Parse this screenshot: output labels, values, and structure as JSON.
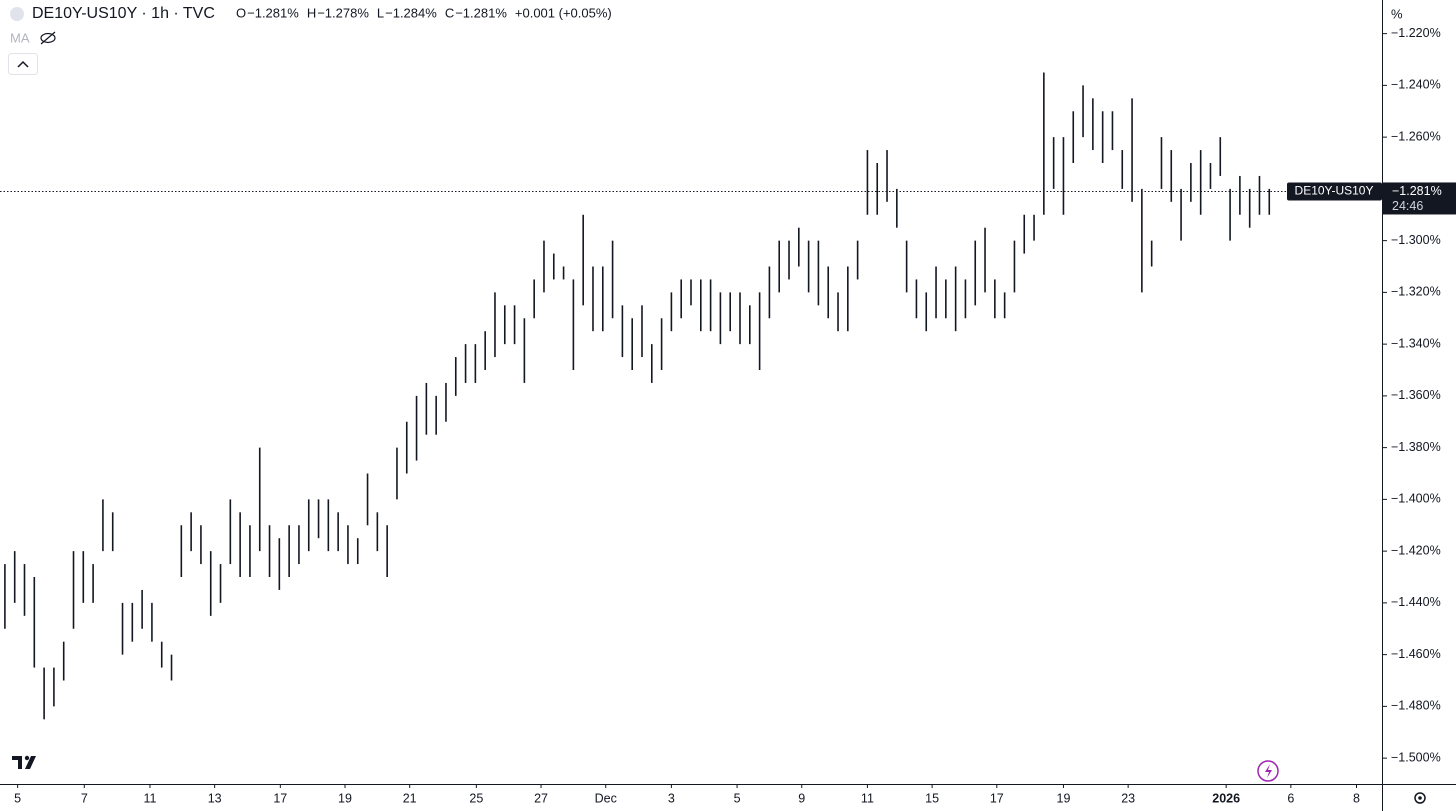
{
  "chart_data": {
    "type": "range-bar",
    "title": "DE10Y-US10Y · 1h · TVC",
    "ohlc": [
      {
        "label": "O",
        "value": "−1.281%"
      },
      {
        "label": "H",
        "value": "−1.278%"
      },
      {
        "label": "L",
        "value": "−1.284%"
      },
      {
        "label": "C",
        "value": "−1.281%"
      }
    ],
    "change": "+0.001 (+0.05%)",
    "indicator": "MA",
    "unit": "%",
    "color": "#131722",
    "last": {
      "name": "DE10Y-US10Y",
      "value": -1.281,
      "label": "−1.281%",
      "countdown": "24:46"
    },
    "xlim": [
      -0.5,
      140.5
    ],
    "xticks": [
      {
        "value": 1.3,
        "label": "5"
      },
      {
        "value": 8.1,
        "label": "7"
      },
      {
        "value": 14.8,
        "label": "11"
      },
      {
        "value": 21.4,
        "label": "13"
      },
      {
        "value": 28.1,
        "label": "17"
      },
      {
        "value": 34.7,
        "label": "19"
      },
      {
        "value": 41.3,
        "label": "21"
      },
      {
        "value": 48.1,
        "label": "25"
      },
      {
        "value": 54.7,
        "label": "27"
      },
      {
        "value": 61.3,
        "label": "Dec"
      },
      {
        "value": 68,
        "label": "3"
      },
      {
        "value": 74.7,
        "label": "5"
      },
      {
        "value": 81.3,
        "label": "9"
      },
      {
        "value": 88,
        "label": "11"
      },
      {
        "value": 94.6,
        "label": "15"
      },
      {
        "value": 101.2,
        "label": "17"
      },
      {
        "value": 108,
        "label": "19"
      },
      {
        "value": 114.6,
        "label": "23"
      },
      {
        "value": 124.6,
        "label": "2026"
      },
      {
        "value": 131.2,
        "label": "6"
      },
      {
        "value": 137.9,
        "label": "8"
      }
    ],
    "ylim": [
      -1.51,
      -1.207
    ],
    "yticks": [
      {
        "value": -1.22,
        "label": "−1.220%"
      },
      {
        "value": -1.24,
        "label": "−1.240%"
      },
      {
        "value": -1.26,
        "label": "−1.260%"
      },
      {
        "value": -1.28,
        "label": "−1.280%"
      },
      {
        "value": -1.3,
        "label": "−1.300%"
      },
      {
        "value": -1.32,
        "label": "−1.320%"
      },
      {
        "value": -1.34,
        "label": "−1.340%"
      },
      {
        "value": -1.36,
        "label": "−1.360%"
      },
      {
        "value": -1.38,
        "label": "−1.380%"
      },
      {
        "value": -1.4,
        "label": "−1.400%"
      },
      {
        "value": -1.42,
        "label": "−1.420%"
      },
      {
        "value": -1.44,
        "label": "−1.440%"
      },
      {
        "value": -1.46,
        "label": "−1.460%"
      },
      {
        "value": -1.48,
        "label": "−1.480%"
      },
      {
        "value": -1.5,
        "label": "−1.500%"
      }
    ],
    "high": [
      -1.425,
      -1.42,
      -1.425,
      -1.43,
      -1.465,
      -1.465,
      -1.455,
      -1.42,
      -1.42,
      -1.425,
      -1.4,
      -1.405,
      -1.44,
      -1.44,
      -1.435,
      -1.44,
      -1.455,
      -1.46,
      -1.41,
      -1.405,
      -1.41,
      -1.42,
      -1.425,
      -1.4,
      -1.405,
      -1.41,
      -1.38,
      -1.41,
      -1.415,
      -1.41,
      -1.41,
      -1.4,
      -1.4,
      -1.4,
      -1.405,
      -1.41,
      -1.415,
      -1.39,
      -1.405,
      -1.41,
      -1.38,
      -1.37,
      -1.36,
      -1.355,
      -1.36,
      -1.355,
      -1.345,
      -1.34,
      -1.34,
      -1.335,
      -1.32,
      -1.325,
      -1.325,
      -1.33,
      -1.315,
      -1.3,
      -1.305,
      -1.31,
      -1.315,
      -1.29,
      -1.31,
      -1.31,
      -1.3,
      -1.325,
      -1.33,
      -1.325,
      -1.34,
      -1.33,
      -1.32,
      -1.315,
      -1.315,
      -1.315,
      -1.315,
      -1.32,
      -1.32,
      -1.32,
      -1.325,
      -1.32,
      -1.31,
      -1.3,
      -1.3,
      -1.295,
      -1.3,
      -1.3,
      -1.31,
      -1.32,
      -1.31,
      -1.3,
      -1.265,
      -1.27,
      -1.265,
      -1.28,
      -1.3,
      -1.315,
      -1.32,
      -1.31,
      -1.315,
      -1.31,
      -1.315,
      -1.3,
      -1.295,
      -1.315,
      -1.32,
      -1.3,
      -1.29,
      -1.29,
      -1.235,
      -1.26,
      -1.26,
      -1.25,
      -1.24,
      -1.245,
      -1.25,
      -1.25,
      -1.265,
      -1.245,
      -1.28,
      -1.3,
      -1.26,
      -1.265,
      -1.28,
      -1.27,
      -1.265,
      -1.27,
      -1.26,
      -1.28,
      -1.275,
      -1.28,
      -1.275,
      -1.28
    ],
    "low": [
      -1.45,
      -1.44,
      -1.445,
      -1.465,
      -1.485,
      -1.48,
      -1.47,
      -1.45,
      -1.44,
      -1.44,
      -1.42,
      -1.42,
      -1.46,
      -1.455,
      -1.45,
      -1.455,
      -1.465,
      -1.47,
      -1.43,
      -1.42,
      -1.425,
      -1.445,
      -1.44,
      -1.425,
      -1.43,
      -1.43,
      -1.42,
      -1.43,
      -1.435,
      -1.43,
      -1.425,
      -1.42,
      -1.415,
      -1.42,
      -1.42,
      -1.425,
      -1.425,
      -1.41,
      -1.42,
      -1.43,
      -1.4,
      -1.39,
      -1.385,
      -1.375,
      -1.375,
      -1.37,
      -1.36,
      -1.355,
      -1.355,
      -1.35,
      -1.345,
      -1.34,
      -1.34,
      -1.355,
      -1.33,
      -1.32,
      -1.315,
      -1.315,
      -1.35,
      -1.325,
      -1.335,
      -1.335,
      -1.33,
      -1.345,
      -1.35,
      -1.345,
      -1.355,
      -1.35,
      -1.335,
      -1.33,
      -1.325,
      -1.335,
      -1.335,
      -1.34,
      -1.335,
      -1.34,
      -1.34,
      -1.35,
      -1.33,
      -1.32,
      -1.315,
      -1.31,
      -1.32,
      -1.325,
      -1.33,
      -1.335,
      -1.335,
      -1.315,
      -1.29,
      -1.29,
      -1.285,
      -1.295,
      -1.32,
      -1.33,
      -1.335,
      -1.33,
      -1.33,
      -1.335,
      -1.33,
      -1.325,
      -1.32,
      -1.33,
      -1.33,
      -1.32,
      -1.305,
      -1.3,
      -1.29,
      -1.28,
      -1.29,
      -1.27,
      -1.26,
      -1.265,
      -1.27,
      -1.265,
      -1.28,
      -1.285,
      -1.32,
      -1.31,
      -1.28,
      -1.285,
      -1.3,
      -1.285,
      -1.29,
      -1.28,
      -1.275,
      -1.3,
      -1.29,
      -1.295,
      -1.29,
      -1.29
    ]
  }
}
